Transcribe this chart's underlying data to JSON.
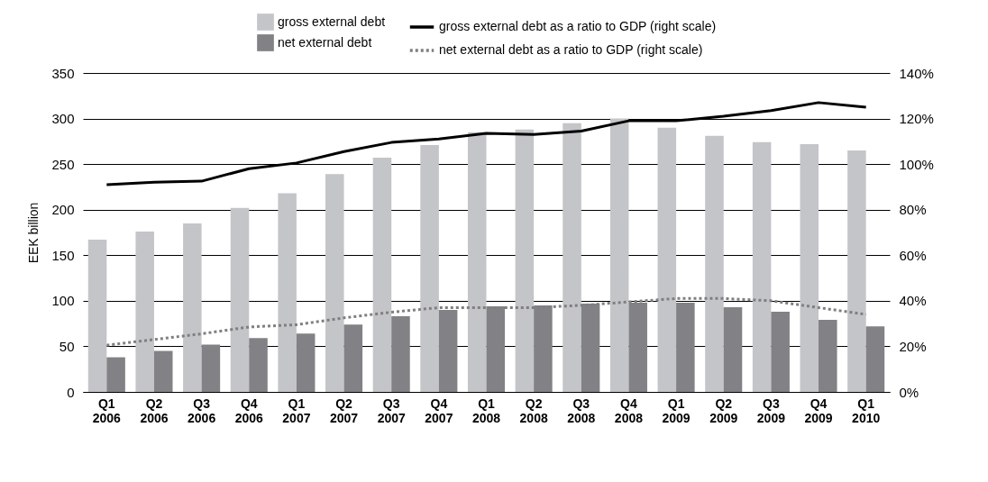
{
  "chart_data": {
    "type": "bar",
    "ylabel": "EEK billion",
    "categories": [
      "Q1 2006",
      "Q2 2006",
      "Q3 2006",
      "Q4 2006",
      "Q1 2007",
      "Q2 2007",
      "Q3 2007",
      "Q4 2007",
      "Q1 2008",
      "Q2 2008",
      "Q3 2008",
      "Q4 2008",
      "Q1 2009",
      "Q2 2009",
      "Q3 2009",
      "Q4 2009",
      "Q1 2010"
    ],
    "series": [
      {
        "name": "gross external debt",
        "color": "#c4c5c8",
        "values": [
          167,
          176,
          185,
          202,
          218,
          239,
          257,
          271,
          285,
          288,
          295,
          300,
          290,
          281,
          274,
          272,
          265
        ]
      },
      {
        "name": "net external debt",
        "color": "#828185",
        "values": [
          38,
          45,
          52,
          59,
          64,
          74,
          83,
          90,
          94,
          95,
          97,
          98,
          98,
          93,
          88,
          79,
          72
        ]
      },
      {
        "name": "gross external debt as a ratio to GDP (right scale)",
        "type": "line",
        "axis": "y2",
        "line_style": "solid",
        "color": "#000000",
        "values": [
          91,
          92,
          92.5,
          98,
          100.5,
          105.5,
          109.5,
          111,
          113.5,
          113,
          114.5,
          119,
          119,
          121,
          123.5,
          127,
          125
        ]
      },
      {
        "name": "net external debt as a ratio to GDP (right scale)",
        "type": "line",
        "axis": "y2",
        "line_style": "dotted",
        "color": "#7f7f7f",
        "values": [
          20.5,
          23,
          25.5,
          28.5,
          29.5,
          32.5,
          35,
          37,
          37,
          37,
          38,
          39.5,
          41,
          41,
          40,
          37,
          34
        ]
      }
    ],
    "ylim": [
      0,
      350
    ],
    "yticks": [
      0,
      50,
      100,
      150,
      200,
      250,
      300,
      350
    ],
    "y2lim": [
      0,
      140
    ],
    "y2ticks": [
      {
        "value": 0,
        "label": "0%"
      },
      {
        "value": 20,
        "label": "20%"
      },
      {
        "value": 40,
        "label": "40%"
      },
      {
        "value": 60,
        "label": "60%"
      },
      {
        "value": 80,
        "label": "80%"
      },
      {
        "value": 100,
        "label": "100%"
      },
      {
        "value": 120,
        "label": "120%"
      },
      {
        "value": 140,
        "label": "140%"
      }
    ],
    "grid": "y",
    "legend": "top"
  }
}
